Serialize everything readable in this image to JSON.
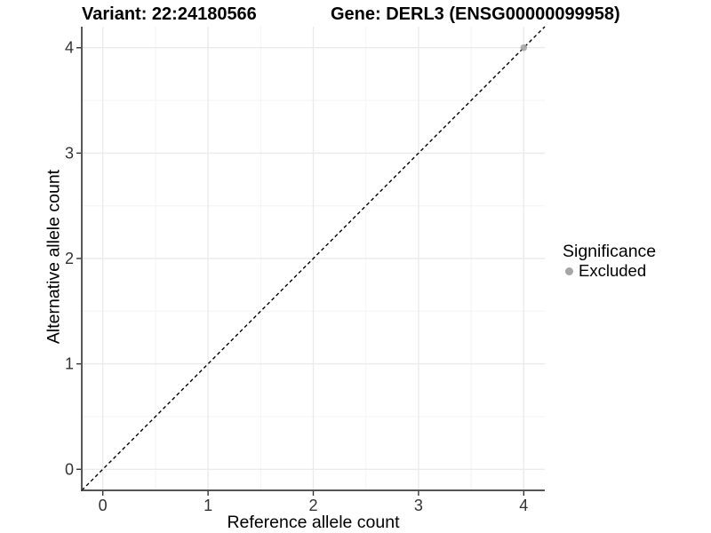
{
  "title": {
    "variant": "Variant: 22:24180566",
    "gene": "Gene: DERL3 (ENSG00000099958)"
  },
  "chart_data": {
    "type": "scatter",
    "title_left": "Variant: 22:24180566",
    "title_right": "Gene: DERL3 (ENSG00000099958)",
    "xlabel": "Reference allele count",
    "ylabel": "Alternative allele count",
    "xlim": [
      -0.2,
      4.2
    ],
    "ylim": [
      -0.2,
      4.2
    ],
    "xticks": [
      0,
      1,
      2,
      3,
      4
    ],
    "yticks": [
      0,
      1,
      2,
      3,
      4
    ],
    "minor_gridlines_x": [
      0.5,
      1.5,
      2.5,
      3.5
    ],
    "minor_gridlines_y": [
      0.5,
      1.5,
      2.5,
      3.5
    ],
    "grid": "major and minor, light grey on white panel",
    "identity_line": {
      "slope": 1,
      "intercept": 0,
      "style": "dashed",
      "color": "#000000"
    },
    "series": [
      {
        "name": "Excluded",
        "color": "#a6a6a6",
        "marker": "circle",
        "points": [
          {
            "x": 4,
            "y": 4
          }
        ]
      }
    ],
    "legend": {
      "title": "Significance",
      "position": "right",
      "entries": [
        {
          "label": "Excluded",
          "color": "#a6a6a6",
          "marker": "circle"
        }
      ]
    }
  },
  "colors": {
    "background": "#ffffff",
    "grid_major": "#ebebeb",
    "grid_minor": "#f4f4f4",
    "axis_line": "#3c3c3c",
    "tick_mark": "#333333",
    "tick_label": "#333333",
    "title_text": "#000000",
    "identity_line": "#000000",
    "point": "#a6a6a6"
  }
}
